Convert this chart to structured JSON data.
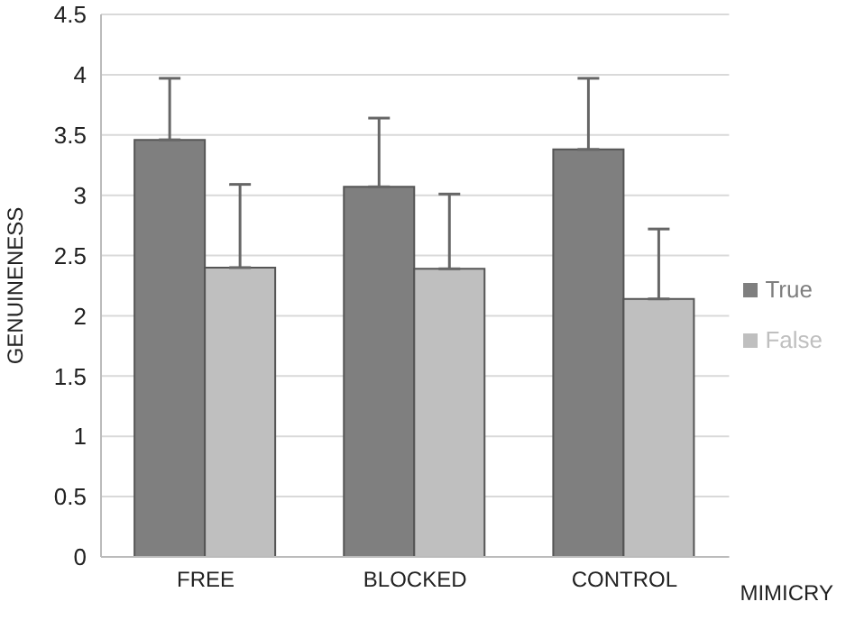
{
  "chart_data": {
    "type": "bar",
    "ylabel": "GENUINENESS",
    "xlabel": "MIMICRY",
    "categories": [
      "FREE",
      "BLOCKED",
      "CONTROL"
    ],
    "series": [
      {
        "name": "True",
        "color": "#7f7f7f",
        "values": [
          3.46,
          3.07,
          3.38
        ],
        "errors": [
          [
            3.46,
            3.97
          ],
          [
            3.07,
            3.64
          ],
          [
            3.38,
            3.97
          ]
        ]
      },
      {
        "name": "False",
        "color": "#bfbfbf",
        "values": [
          2.4,
          2.39,
          2.14
        ],
        "errors": [
          [
            2.4,
            3.09
          ],
          [
            2.39,
            3.01
          ],
          [
            2.14,
            2.72
          ]
        ]
      }
    ],
    "ylim": [
      0,
      4.5
    ],
    "yticks": [
      0,
      0.5,
      1,
      1.5,
      2,
      2.5,
      3,
      3.5,
      4,
      4.5
    ],
    "grid": "y",
    "legend": "right"
  }
}
